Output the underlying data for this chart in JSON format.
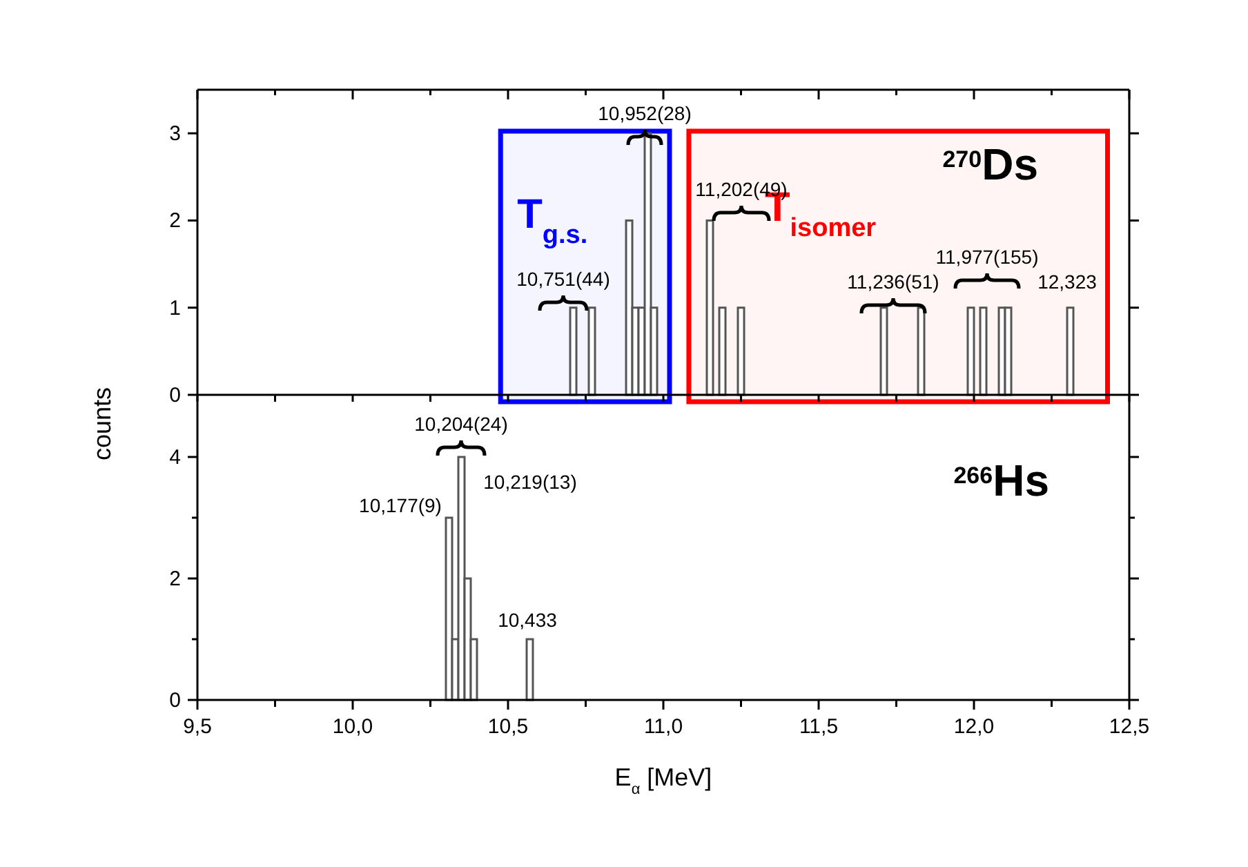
{
  "chart_data": [
    {
      "type": "histogram",
      "xlim": [
        9.5,
        12.5
      ],
      "ylim": [
        0,
        3.5
      ],
      "yticks": [
        0,
        1,
        2,
        3
      ],
      "tick_labels": "y",
      "xticks": [
        {
          "value": 9.5,
          "label": null
        },
        {
          "value": 9.75,
          "label": null
        },
        {
          "value": 10,
          "label": null
        },
        {
          "value": 10.25,
          "label": null
        },
        {
          "value": 10.5,
          "label": null
        },
        {
          "value": 10.75,
          "label": null
        },
        {
          "value": 11,
          "label": null
        },
        {
          "value": 11.25,
          "label": null
        },
        {
          "value": 11.5,
          "label": null
        },
        {
          "value": 11.75,
          "label": null
        },
        {
          "value": 12,
          "label": null
        },
        {
          "value": 12.25,
          "label": null
        },
        {
          "value": 12.5,
          "label": null
        }
      ],
      "bins": [
        10.7,
        10.72,
        10.74,
        10.76,
        10.78,
        10.8,
        10.82,
        10.84,
        10.86,
        10.88,
        10.9,
        10.92,
        10.94,
        10.96,
        10.98,
        11,
        11.02,
        11.04,
        11.06,
        11.08,
        11.1,
        11.12,
        11.14,
        11.16,
        11.18,
        11.2,
        11.22,
        11.24,
        11.26,
        11.28,
        11.3,
        11.32,
        11.34,
        11.36,
        11.38,
        11.4,
        11.42,
        11.44,
        11.46,
        11.48,
        11.5,
        11.52,
        11.54,
        11.56,
        11.58,
        11.6,
        11.62,
        11.64,
        11.66,
        11.68,
        11.7,
        11.72,
        11.74,
        11.76,
        11.78,
        11.8,
        11.82,
        11.84,
        11.86,
        11.88,
        11.9,
        11.92,
        11.94,
        11.96,
        11.98,
        12,
        12.02,
        12.04,
        12.06,
        12.08,
        12.1,
        12.12,
        12.14,
        12.16,
        12.18,
        12.2,
        12.22,
        12.24,
        12.26,
        12.28,
        12.3,
        12.32
      ],
      "values": [
        1,
        0,
        0,
        1,
        0,
        0,
        0,
        0,
        0,
        2,
        1,
        1,
        3,
        1,
        0,
        0,
        0,
        0,
        0,
        0,
        0,
        0,
        2,
        0,
        1,
        0,
        0,
        1,
        0,
        0,
        0,
        0,
        0,
        0,
        0,
        0,
        0,
        0,
        0,
        0,
        0,
        0,
        0,
        0,
        0,
        0,
        0,
        0,
        0,
        0,
        1,
        0,
        0,
        0,
        0,
        0,
        1,
        0,
        0,
        0,
        0,
        0,
        0,
        0,
        1,
        0,
        1,
        0,
        0,
        1,
        1,
        0,
        0,
        0,
        0,
        0,
        0,
        0,
        0,
        0,
        1
      ],
      "color": "#555555",
      "bands": [
        {
          "axis": "x",
          "from": 10.476,
          "to": 11.02,
          "label": "T$_{g.s.}$",
          "color": "#0000ff"
        },
        {
          "axis": "x",
          "from": 11.082,
          "to": 12.43,
          "label": "T$_{isomer}$",
          "color": "#ff0000"
        }
      ],
      "annotations": [
        "10,751(44)",
        "10,952(28)",
        "11,202(49)",
        "11,236(51)",
        "11,977(155)",
        "12,323",
        "$^{270}$Ds"
      ]
    },
    {
      "type": "histogram",
      "xlim": [
        9.5,
        12.5
      ],
      "ylim": [
        0,
        5
      ],
      "yticks": [
        0,
        {
          "value": 1,
          "label": null
        },
        2,
        {
          "value": 3,
          "label": null
        },
        4
      ],
      "xticks": [
        {
          "value": 9.5,
          "label": "9,5"
        },
        {
          "value": 9.75,
          "label": null
        },
        {
          "value": 10,
          "label": "10,0"
        },
        {
          "value": 10.25,
          "label": null
        },
        {
          "value": 10.5,
          "label": "10,5"
        },
        {
          "value": 10.75,
          "label": null
        },
        {
          "value": 11,
          "label": "11,0"
        },
        {
          "value": 11.25,
          "label": null
        },
        {
          "value": 11.5,
          "label": "11,5"
        },
        {
          "value": 11.75,
          "label": null
        },
        {
          "value": 12,
          "label": "12,0"
        },
        {
          "value": 12.25,
          "label": null
        },
        {
          "value": 12.5,
          "label": "12,5"
        }
      ],
      "bins": [
        10.3,
        10.32,
        10.34,
        10.36,
        10.38,
        10.4,
        10.42,
        10.44,
        10.46,
        10.48,
        10.5,
        10.52,
        10.54,
        10.56,
        10.58
      ],
      "values": [
        3,
        1,
        4,
        2,
        1,
        0,
        0,
        0,
        0,
        0,
        0,
        0,
        0,
        1
      ],
      "color": "#555555",
      "xlabel": "E$_{α}$ [MeV]",
      "ylabel": "counts",
      "annotations": [
        "10,204(24)",
        "10,177(9)",
        "10,219(13)",
        "10,433",
        "$^{266}$Hs"
      ]
    }
  ]
}
